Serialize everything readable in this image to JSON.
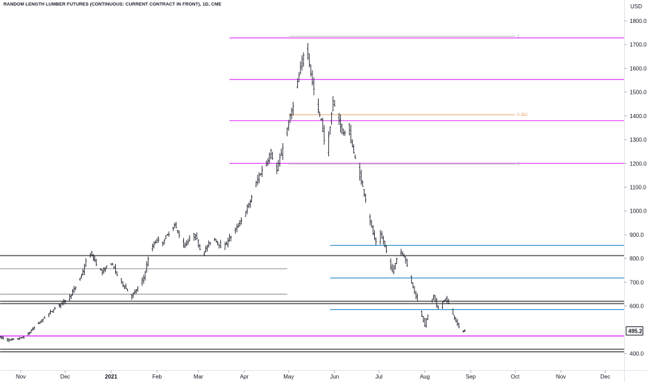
{
  "chart_title": "RANDOM LENGTH LUMBER FUTURES (CONTINUOUS: CURRENT CONTRACT IN FRONT), 1D, CME",
  "currency": "USD",
  "last_price_label": "495.2",
  "colors": {
    "background": "#ffffff",
    "bars": "#131722",
    "magenta_levels": "#e040fb",
    "blue_levels": "#1e88c8",
    "black_levels": "#000000",
    "gray_levels": "#8a8a8a",
    "fib_top": "#b0b0b0",
    "fib_mid": "#e5a06a",
    "axis_text": "#131722"
  },
  "chart_data": {
    "type": "ohlc",
    "title": "RANDOM LENGTH LUMBER FUTURES (CONTINUOUS: CURRENT CONTRACT IN FRONT), 1D, CME",
    "y_axis": {
      "ylim": [
        372,
        1860
      ],
      "ticks": [
        1800,
        1700,
        1600,
        1500,
        1400,
        1300,
        1200,
        1100,
        1000,
        900,
        800,
        700,
        600,
        400
      ],
      "tick_labels": [
        "1800.0",
        "1700.0",
        "1600.0",
        "1500.0",
        "1400.0",
        "1300.0",
        "1200.0",
        "1100.0",
        "1000.0",
        "900.0",
        "800.0",
        "700.0",
        "600.0",
        "400.0"
      ],
      "position": "right"
    },
    "x_axis": {
      "labels": [
        {
          "text": "Nov",
          "t": 2,
          "bold": false
        },
        {
          "text": "Dec",
          "t": 32,
          "bold": false
        },
        {
          "text": "2021",
          "t": 63,
          "bold": true
        },
        {
          "text": "Feb",
          "t": 94,
          "bold": false
        },
        {
          "text": "Mar",
          "t": 122,
          "bold": false
        },
        {
          "text": "Apr",
          "t": 153,
          "bold": false
        },
        {
          "text": "May",
          "t": 183,
          "bold": false
        },
        {
          "text": "Jun",
          "t": 214,
          "bold": false
        },
        {
          "text": "Jul",
          "t": 244,
          "bold": false
        },
        {
          "text": "Aug",
          "t": 275,
          "bold": false
        },
        {
          "text": "Sep",
          "t": 306,
          "bold": false
        },
        {
          "text": "Oct",
          "t": 336,
          "bold": false
        },
        {
          "text": "Nov",
          "t": 367,
          "bold": false
        },
        {
          "text": "Dec",
          "t": 397,
          "bold": false
        }
      ],
      "t_range": [
        -12,
        410
      ],
      "t_unit": "calendar days from Nov 1 2020"
    },
    "price_path": [
      [
        -12,
        470
      ],
      [
        -5,
        455
      ],
      [
        0,
        460
      ],
      [
        6,
        470
      ],
      [
        12,
        510
      ],
      [
        18,
        545
      ],
      [
        22,
        568
      ],
      [
        26,
        590
      ],
      [
        30,
        610
      ],
      [
        36,
        640
      ],
      [
        40,
        680
      ],
      [
        44,
        730
      ],
      [
        47,
        785
      ],
      [
        50,
        820
      ],
      [
        53,
        790
      ],
      [
        56,
        760
      ],
      [
        58,
        740
      ],
      [
        60,
        755
      ],
      [
        63,
        785
      ],
      [
        66,
        760
      ],
      [
        68,
        730
      ],
      [
        72,
        690
      ],
      [
        75,
        665
      ],
      [
        78,
        640
      ],
      [
        80,
        660
      ],
      [
        83,
        680
      ],
      [
        86,
        720
      ],
      [
        89,
        800
      ],
      [
        92,
        850
      ],
      [
        95,
        880
      ],
      [
        98,
        860
      ],
      [
        101,
        890
      ],
      [
        104,
        915
      ],
      [
        107,
        940
      ],
      [
        110,
        900
      ],
      [
        113,
        850
      ],
      [
        116,
        870
      ],
      [
        119,
        900
      ],
      [
        122,
        880
      ],
      [
        125,
        820
      ],
      [
        128,
        840
      ],
      [
        131,
        870
      ],
      [
        134,
        880
      ],
      [
        137,
        860
      ],
      [
        140,
        840
      ],
      [
        143,
        880
      ],
      [
        146,
        900
      ],
      [
        149,
        930
      ],
      [
        152,
        960
      ],
      [
        155,
        1000
      ],
      [
        158,
        1040
      ],
      [
        161,
        1100
      ],
      [
        164,
        1150
      ],
      [
        167,
        1180
      ],
      [
        170,
        1220
      ],
      [
        172,
        1250
      ],
      [
        174,
        1200
      ],
      [
        176,
        1170
      ],
      [
        178,
        1220
      ],
      [
        180,
        1270
      ],
      [
        182,
        1320
      ],
      [
        184,
        1370
      ],
      [
        186,
        1420
      ],
      [
        188,
        1480
      ],
      [
        190,
        1540
      ],
      [
        192,
        1600
      ],
      [
        194,
        1660
      ],
      [
        196,
        1700
      ],
      [
        198,
        1620
      ],
      [
        200,
        1540
      ],
      [
        202,
        1480
      ],
      [
        204,
        1420
      ],
      [
        206,
        1380
      ],
      [
        208,
        1300
      ],
      [
        210,
        1260
      ],
      [
        212,
        1360
      ],
      [
        214,
        1460
      ],
      [
        216,
        1420
      ],
      [
        218,
        1380
      ],
      [
        220,
        1340
      ],
      [
        222,
        1320
      ],
      [
        224,
        1360
      ],
      [
        226,
        1300
      ],
      [
        228,
        1240
      ],
      [
        230,
        1200
      ],
      [
        232,
        1150
      ],
      [
        234,
        1100
      ],
      [
        236,
        1050
      ],
      [
        238,
        980
      ],
      [
        240,
        930
      ],
      [
        242,
        880
      ],
      [
        244,
        850
      ],
      [
        246,
        900
      ],
      [
        248,
        870
      ],
      [
        250,
        830
      ],
      [
        252,
        780
      ],
      [
        254,
        750
      ],
      [
        256,
        780
      ],
      [
        258,
        820
      ],
      [
        260,
        830
      ],
      [
        262,
        810
      ],
      [
        264,
        770
      ],
      [
        266,
        720
      ],
      [
        268,
        680
      ],
      [
        270,
        640
      ],
      [
        272,
        600
      ],
      [
        274,
        560
      ],
      [
        276,
        520
      ],
      [
        278,
        560
      ],
      [
        280,
        620
      ],
      [
        282,
        640
      ],
      [
        284,
        600
      ],
      [
        286,
        580
      ],
      [
        288,
        620
      ],
      [
        290,
        630
      ],
      [
        292,
        610
      ],
      [
        294,
        580
      ],
      [
        296,
        550
      ],
      [
        298,
        520
      ],
      [
        300,
        500
      ],
      [
        302,
        495.2
      ]
    ],
    "horizontal_levels": [
      {
        "price": 1728,
        "color": "magenta",
        "from_t": 143,
        "to_t": 410,
        "width": 1.2
      },
      {
        "price": 1553,
        "color": "magenta",
        "from_t": 143,
        "to_t": 410,
        "width": 1.2
      },
      {
        "price": 1380,
        "color": "magenta",
        "from_t": 143,
        "to_t": 410,
        "width": 1.2
      },
      {
        "price": 1200,
        "color": "magenta",
        "from_t": 143,
        "to_t": 410,
        "width": 1.2
      },
      {
        "price": 474,
        "color": "magenta",
        "from_t": -12,
        "to_t": 410,
        "width": 1.6
      },
      {
        "price": 855,
        "color": "blue",
        "from_t": 211,
        "to_t": 410,
        "width": 1.2
      },
      {
        "price": 718,
        "color": "blue",
        "from_t": 211,
        "to_t": 410,
        "width": 1.2
      },
      {
        "price": 585,
        "color": "blue",
        "from_t": 211,
        "to_t": 410,
        "width": 1.2
      },
      {
        "price": 812,
        "color": "black",
        "from_t": -12,
        "to_t": 410,
        "width": 1
      },
      {
        "price": 620,
        "color": "black",
        "from_t": -12,
        "to_t": 410,
        "width": 1
      },
      {
        "price": 610,
        "color": "black",
        "from_t": -12,
        "to_t": 410,
        "width": 1
      },
      {
        "price": 418,
        "color": "black",
        "from_t": -12,
        "to_t": 410,
        "width": 1
      },
      {
        "price": 407,
        "color": "black",
        "from_t": -12,
        "to_t": 410,
        "width": 1
      },
      {
        "price": 757,
        "color": "gray",
        "from_t": -12,
        "to_t": 182,
        "width": 1
      },
      {
        "price": 650,
        "color": "gray",
        "from_t": -12,
        "to_t": 182,
        "width": 1
      }
    ],
    "fib_levels": [
      {
        "price": 1735,
        "color": "fib_top",
        "label": "1",
        "from_t": 183,
        "to_t": 336
      },
      {
        "price": 1405,
        "color": "fib_mid",
        "label": "0.382",
        "from_t": 183,
        "to_t": 336
      },
      {
        "price": 1198,
        "color": "fib_top",
        "label": "0",
        "from_t": 183,
        "to_t": 336
      }
    ],
    "last_price": 495.2
  }
}
